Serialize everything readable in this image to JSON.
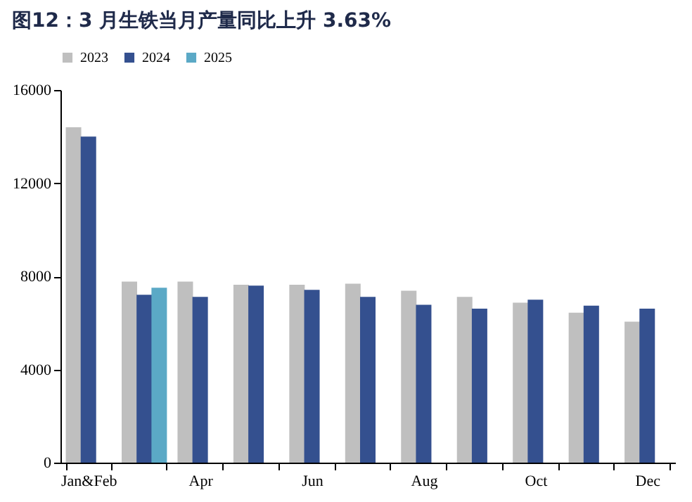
{
  "chart_data": {
    "type": "bar",
    "title": "图12：3 月生铁当月产量同比上升 3.63%",
    "categories": [
      "Jan&Feb",
      null,
      "Apr",
      null,
      "Jun",
      null,
      "Aug",
      null,
      "Oct",
      null,
      "Dec"
    ],
    "series": [
      {
        "name": "2023",
        "color": "#bfbfbf",
        "values": [
          14400,
          7770,
          7770,
          7640,
          7640,
          7680,
          7380,
          7120,
          6870,
          6440,
          6050
        ]
      },
      {
        "name": "2024",
        "color": "#34508f",
        "values": [
          14000,
          7210,
          7120,
          7600,
          7420,
          7120,
          6780,
          6610,
          7000,
          6740,
          6610
        ]
      },
      {
        "name": "2025",
        "color": "#5ba9c6",
        "values": [
          null,
          7510,
          null,
          null,
          null,
          null,
          null,
          null,
          null,
          null,
          null
        ]
      }
    ],
    "ylim": [
      0,
      16000
    ],
    "yticks": [
      0,
      4000,
      8000,
      12000,
      16000
    ],
    "grid": false,
    "legend": "top"
  }
}
